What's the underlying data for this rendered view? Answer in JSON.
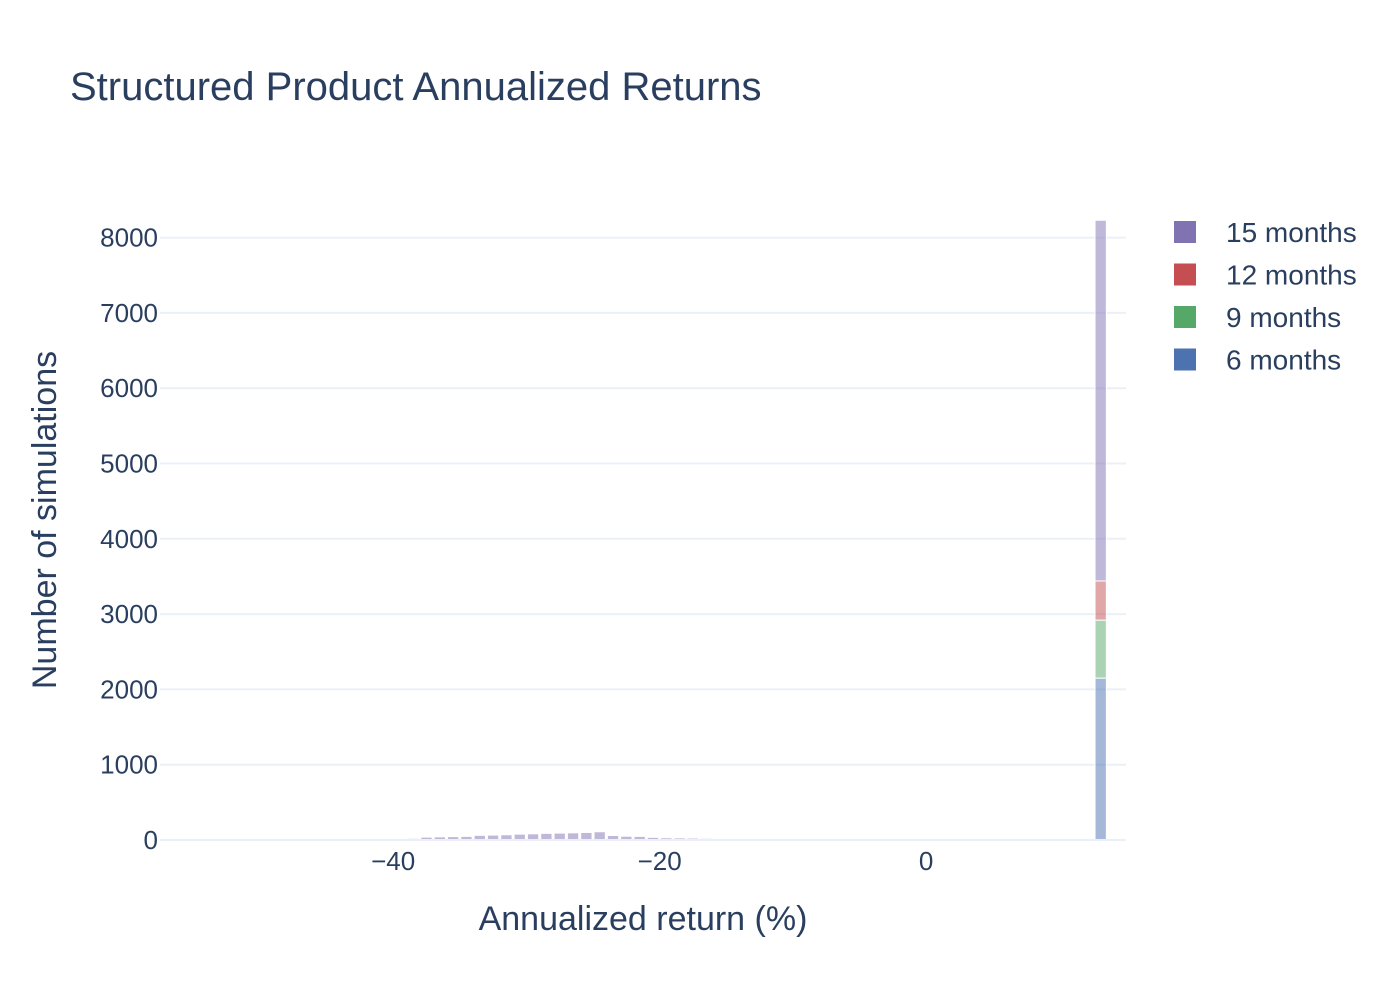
{
  "chart_data": {
    "type": "bar",
    "barmode": "stack",
    "title": "Structured Product Annualized Returns",
    "xlabel": "Annualized return (%)",
    "ylabel": "Number of simulations",
    "xlim": [
      -57.5,
      15
    ],
    "ylim": [
      0,
      8300
    ],
    "x_ticks": [
      -40,
      -20,
      0
    ],
    "x_tick_labels": [
      "−40",
      "−20",
      "0"
    ],
    "y_ticks": [
      0,
      1000,
      2000,
      3000,
      4000,
      5000,
      6000,
      7000,
      8000
    ],
    "y_tick_labels": [
      "0",
      "1000",
      "2000",
      "3000",
      "4000",
      "5000",
      "6000",
      "7000",
      "8000"
    ],
    "grid": true,
    "legend_position": "right",
    "bin_width": 1,
    "series": [
      {
        "name": "6 months",
        "color": "#4c72b0",
        "bins": [
          {
            "x": 13.1,
            "count": 2150
          }
        ]
      },
      {
        "name": "9 months",
        "color": "#55a868",
        "bins": [
          {
            "x": 13.1,
            "count": 770
          }
        ]
      },
      {
        "name": "12 months",
        "color": "#c44e52",
        "bins": [
          {
            "x": 13.1,
            "count": 520
          }
        ]
      },
      {
        "name": "15 months",
        "color": "#8172b2",
        "bins": [
          {
            "x": -42.5,
            "count": 10
          },
          {
            "x": -41.5,
            "count": 12
          },
          {
            "x": -39.5,
            "count": 18
          },
          {
            "x": -38.5,
            "count": 22
          },
          {
            "x": -37.5,
            "count": 38
          },
          {
            "x": -36.5,
            "count": 42
          },
          {
            "x": -35.5,
            "count": 45
          },
          {
            "x": -34.5,
            "count": 48
          },
          {
            "x": -33.5,
            "count": 62
          },
          {
            "x": -32.5,
            "count": 65
          },
          {
            "x": -31.5,
            "count": 70
          },
          {
            "x": -30.5,
            "count": 78
          },
          {
            "x": -29.5,
            "count": 82
          },
          {
            "x": -28.5,
            "count": 88
          },
          {
            "x": -27.5,
            "count": 92
          },
          {
            "x": -26.5,
            "count": 95
          },
          {
            "x": -25.5,
            "count": 100
          },
          {
            "x": -24.5,
            "count": 110
          },
          {
            "x": -23.5,
            "count": 60
          },
          {
            "x": -22.5,
            "count": 50
          },
          {
            "x": -21.5,
            "count": 48
          },
          {
            "x": -20.5,
            "count": 35
          },
          {
            "x": -19.5,
            "count": 30
          },
          {
            "x": -18.5,
            "count": 28
          },
          {
            "x": -17.5,
            "count": 25
          },
          {
            "x": -16.5,
            "count": 22
          },
          {
            "x": -15.5,
            "count": 20
          },
          {
            "x": -14.5,
            "count": 18
          },
          {
            "x": -13.5,
            "count": 16
          },
          {
            "x": -12.5,
            "count": 15
          },
          {
            "x": -10.5,
            "count": 12
          },
          {
            "x": 13.1,
            "count": 4790
          }
        ]
      }
    ]
  }
}
